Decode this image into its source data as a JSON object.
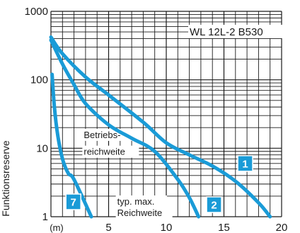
{
  "chart_data": {
    "type": "line",
    "title": "WL 12L-2 B530",
    "ylabel": "Funktionsreserve",
    "xlabel": "(m)",
    "yscale": "log",
    "xlim": [
      0,
      20
    ],
    "ylim": [
      1,
      1000
    ],
    "x_ticks": [
      "(m)",
      "5",
      "10",
      "15",
      "20"
    ],
    "x_tick_values": [
      0,
      5,
      10,
      15,
      20
    ],
    "y_ticks": [
      "1",
      "10",
      "100",
      "1000"
    ],
    "y_tick_values": [
      1,
      10,
      100,
      1000
    ],
    "grid": true,
    "annotations": [
      {
        "text": "Betriebs-",
        "x": 2.6,
        "y": 15.5
      },
      {
        "text": "reichweite",
        "x": 2.6,
        "y": 8.8
      },
      {
        "text": "typ. max.",
        "x": 5.5,
        "y": 1.65
      },
      {
        "text": "Reichweite",
        "x": 5.5,
        "y": 1.12
      }
    ],
    "series": [
      {
        "name": "1",
        "color": "#1a9bd7",
        "badge_pos": [
          16.2,
          6.0
        ],
        "points": [
          [
            0,
            420
          ],
          [
            1,
            240
          ],
          [
            3,
            110
          ],
          [
            5,
            60
          ],
          [
            8,
            24
          ],
          [
            10,
            12
          ],
          [
            12,
            8
          ],
          [
            14,
            5.5
          ],
          [
            16,
            3.3
          ],
          [
            18,
            1.6
          ],
          [
            19,
            1.0
          ]
        ]
      },
      {
        "name": "2",
        "color": "#1a9bd7",
        "badge_pos": [
          13.5,
          1.5
        ],
        "points": [
          [
            0,
            380
          ],
          [
            1,
            170
          ],
          [
            2,
            85
          ],
          [
            3,
            45
          ],
          [
            5,
            22
          ],
          [
            7,
            14
          ],
          [
            9,
            9
          ],
          [
            11,
            3.5
          ],
          [
            12,
            1.9
          ],
          [
            12.8,
            1.0
          ]
        ]
      },
      {
        "name": "7",
        "color": "#1a9bd7",
        "badge_pos": [
          1.3,
          1.65
        ],
        "points": [
          [
            0.1,
            120
          ],
          [
            0.3,
            40
          ],
          [
            0.6,
            15
          ],
          [
            1.0,
            7
          ],
          [
            1.5,
            4.3
          ],
          [
            2,
            3.5
          ],
          [
            3.5,
            1.0
          ]
        ]
      }
    ]
  }
}
